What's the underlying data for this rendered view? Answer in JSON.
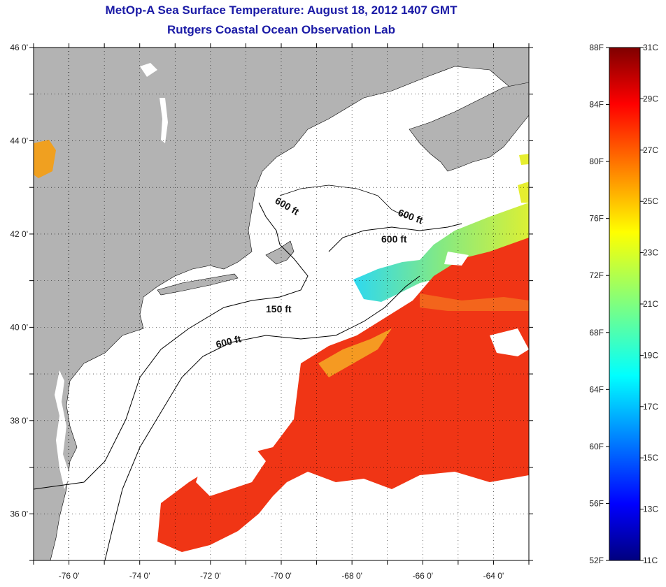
{
  "title": "MetOp-A Sea Surface Temperature:  August 18, 2012 1407 GMT",
  "subtitle": "Rutgers Coastal Ocean Observation Lab",
  "map": {
    "lon_range": [
      -77,
      -63
    ],
    "lat_range": [
      35,
      46
    ],
    "x_ticks": [
      "-76 0'",
      "-74 0'",
      "-72 0'",
      "-70 0'",
      "-68 0'",
      "-66 0'",
      "-64 0'"
    ],
    "y_ticks": [
      "46 0'",
      "44 0'",
      "42 0'",
      "40 0'",
      "38 0'",
      "36 0'"
    ],
    "isobath_labels": [
      "600 ft",
      "600 ft",
      "600 ft",
      "150 ft",
      "600 ft"
    ],
    "land_color": "#b3b3b3",
    "water_color": "#ffffff"
  },
  "colorbar": {
    "f_labels": [
      "88F",
      "84F",
      "80F",
      "76F",
      "72F",
      "68F",
      "64F",
      "60F",
      "56F",
      "52F"
    ],
    "c_labels": [
      "31C",
      "29C",
      "27C",
      "25C",
      "23C",
      "21C",
      "19C",
      "17C",
      "15C",
      "13C",
      "11C"
    ],
    "colormap": "jet"
  }
}
